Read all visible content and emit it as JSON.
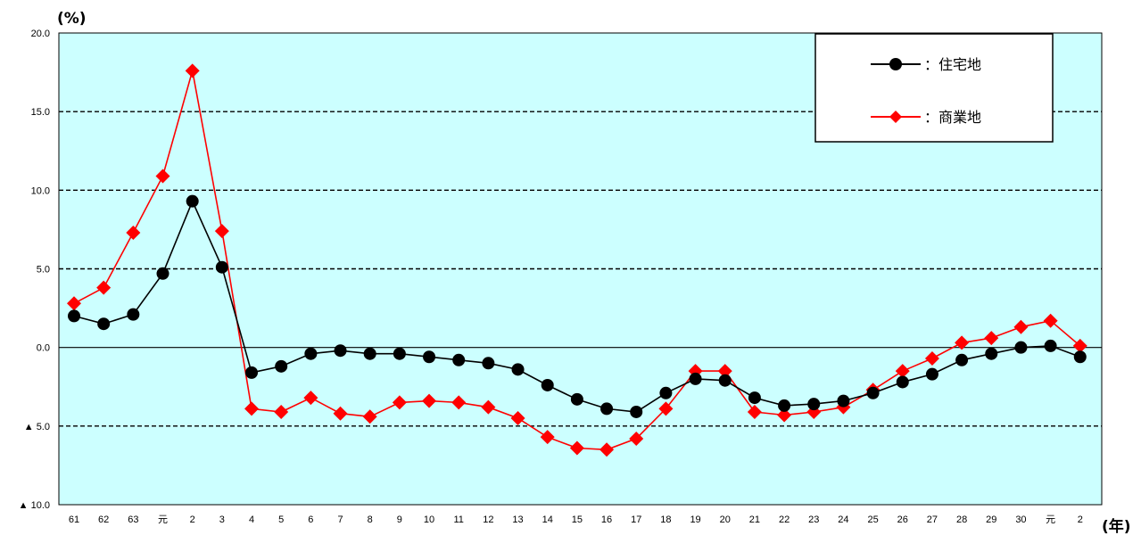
{
  "chart_data": {
    "type": "line",
    "y_unit": "(%)",
    "x_unit": "(年)",
    "ylim": [
      -10,
      20
    ],
    "y_ticks": [
      {
        "value": 20,
        "label": "20.0"
      },
      {
        "value": 15,
        "label": "15.0"
      },
      {
        "value": 10,
        "label": "10.0"
      },
      {
        "value": 5,
        "label": "5.0"
      },
      {
        "value": 0,
        "label": "0.0"
      },
      {
        "value": -5,
        "label": "▲ 5.0"
      },
      {
        "value": -10,
        "label": "▲ 10.0"
      }
    ],
    "grid": "dashed horizontal",
    "plot_background": "#ccffff",
    "legend_position": "top-right",
    "categories": [
      "61",
      "62",
      "63",
      "元",
      "2",
      "3",
      "4",
      "5",
      "6",
      "7",
      "8",
      "9",
      "10",
      "11",
      "12",
      "13",
      "14",
      "15",
      "16",
      "17",
      "18",
      "19",
      "20",
      "21",
      "22",
      "23",
      "24",
      "25",
      "26",
      "27",
      "28",
      "29",
      "30",
      "元",
      "2"
    ],
    "series": [
      {
        "name": "：住宅地",
        "color": "#000000",
        "marker": "circle",
        "values": [
          2.0,
          1.5,
          2.1,
          4.7,
          9.3,
          5.1,
          -1.6,
          -1.2,
          -0.4,
          -0.2,
          -0.4,
          -0.4,
          -0.6,
          -0.8,
          -1.0,
          -1.4,
          -2.4,
          -3.3,
          -3.9,
          -4.1,
          -2.9,
          -2.0,
          -2.1,
          -3.2,
          -3.7,
          -3.6,
          -3.4,
          -2.9,
          -2.2,
          -1.7,
          -0.8,
          -0.4,
          0.0,
          0.1,
          -0.6
        ]
      },
      {
        "name": "：商業地",
        "color": "#ff0000",
        "marker": "diamond",
        "values": [
          2.8,
          3.8,
          7.3,
          10.9,
          17.6,
          7.4,
          -3.9,
          -4.1,
          -3.2,
          -4.2,
          -4.4,
          -3.5,
          -3.4,
          -3.5,
          -3.8,
          -4.5,
          -5.7,
          -6.4,
          -6.5,
          -5.8,
          -3.9,
          -1.5,
          -1.5,
          -4.1,
          -4.3,
          -4.1,
          -3.8,
          -2.7,
          -1.5,
          -0.7,
          0.3,
          0.6,
          1.3,
          1.7,
          0.1
        ]
      }
    ]
  }
}
